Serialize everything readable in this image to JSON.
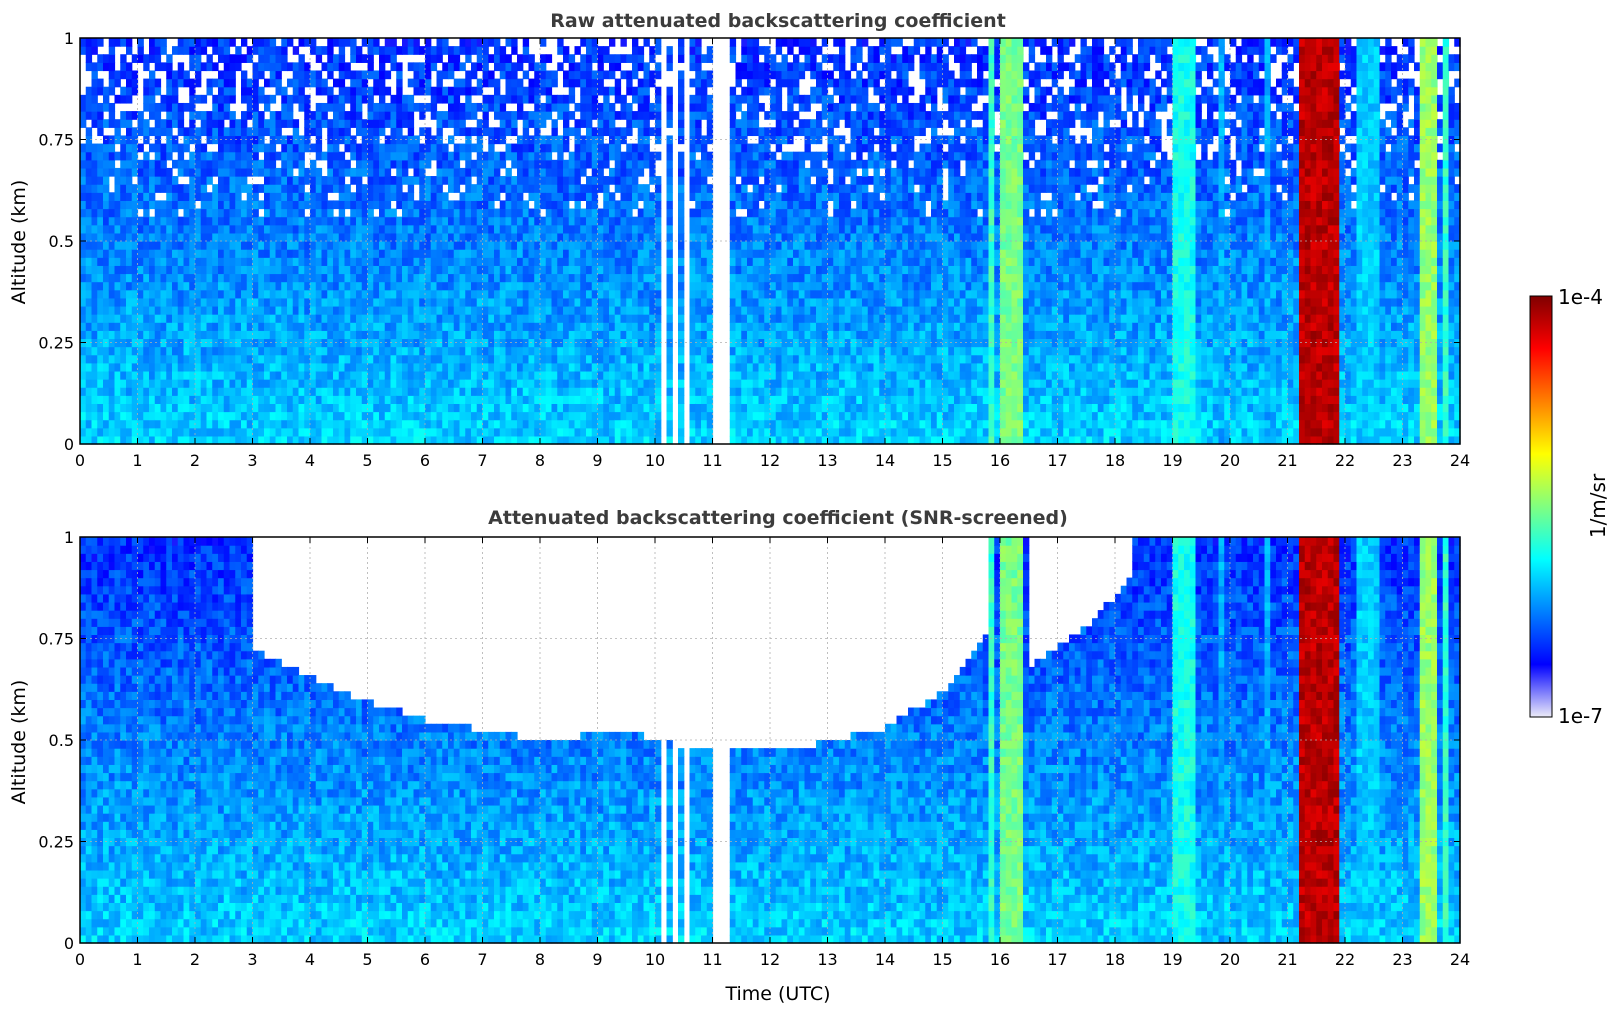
{
  "chart_data": [
    {
      "type": "heatmap",
      "title": "Raw attenuated backscattering coefficient",
      "xlabel": "",
      "ylabel": "Altitude (km)",
      "xlim": [
        0,
        24
      ],
      "ylim": [
        0,
        1
      ],
      "x_ticks": [
        "0",
        "1",
        "2",
        "3",
        "4",
        "5",
        "6",
        "7",
        "8",
        "9",
        "10",
        "11",
        "12",
        "13",
        "14",
        "15",
        "16",
        "17",
        "18",
        "19",
        "20",
        "21",
        "22",
        "23",
        "24"
      ],
      "y_ticks": [
        "0",
        "0.25",
        "0.5",
        "0.75",
        "1"
      ],
      "y_tick_values": [
        0,
        0.25,
        0.5,
        0.75,
        1
      ],
      "grid": true,
      "screened": false,
      "no_data_time_ranges_utc": [
        [
          10.1,
          10.18
        ],
        [
          10.3,
          10.42
        ],
        [
          10.55,
          10.62
        ],
        [
          11.05,
          11.35
        ],
        [
          11.5,
          11.54
        ]
      ],
      "enhanced_columns_utc": [
        {
          "start": 15.85,
          "end": 15.95,
          "peak_log10": -5.6
        },
        {
          "start": 16.0,
          "end": 16.4,
          "peak_log10": -5.4
        },
        {
          "start": 19.0,
          "end": 19.4,
          "peak_log10": -5.7
        },
        {
          "start": 19.85,
          "end": 19.95,
          "peak_log10": -6.0
        },
        {
          "start": 20.6,
          "end": 20.7,
          "peak_log10": -6.0
        },
        {
          "start": 21.2,
          "end": 21.9,
          "peak_log10": -4.05
        },
        {
          "start": 22.2,
          "end": 22.6,
          "peak_log10": -5.9
        },
        {
          "start": 23.3,
          "end": 23.6,
          "peak_log10": -5.3
        },
        {
          "start": 23.7,
          "end": 23.8,
          "peak_log10": -5.6
        }
      ],
      "background_log10": {
        "near_surface": -6.0,
        "aloft": -6.5
      }
    },
    {
      "type": "heatmap",
      "title": "Attenuated backscattering coefficient (SNR-screened)",
      "xlabel": "Time (UTC)",
      "ylabel": "Altitude (km)",
      "xlim": [
        0,
        24
      ],
      "ylim": [
        0,
        1
      ],
      "x_ticks": [
        "0",
        "1",
        "2",
        "3",
        "4",
        "5",
        "6",
        "7",
        "8",
        "9",
        "10",
        "11",
        "12",
        "13",
        "14",
        "15",
        "16",
        "17",
        "18",
        "19",
        "20",
        "21",
        "22",
        "23",
        "24"
      ],
      "y_ticks": [
        "0",
        "0.25",
        "0.5",
        "0.75",
        "1"
      ],
      "y_tick_values": [
        0,
        0.25,
        0.5,
        0.75,
        1
      ],
      "grid": true,
      "screened": true,
      "screening_top_km": [
        {
          "t": 0,
          "h": 1.0
        },
        {
          "t": 3.0,
          "h": 1.0
        },
        {
          "t": 3.05,
          "h": 0.72
        },
        {
          "t": 4.5,
          "h": 0.62
        },
        {
          "t": 6.0,
          "h": 0.55
        },
        {
          "t": 8.0,
          "h": 0.5
        },
        {
          "t": 9.5,
          "h": 0.52
        },
        {
          "t": 11.0,
          "h": 0.47
        },
        {
          "t": 12.5,
          "h": 0.48
        },
        {
          "t": 14.0,
          "h": 0.53
        },
        {
          "t": 15.0,
          "h": 0.62
        },
        {
          "t": 15.75,
          "h": 0.75
        },
        {
          "t": 15.8,
          "h": 1.0
        },
        {
          "t": 16.5,
          "h": 1.0
        },
        {
          "t": 16.55,
          "h": 0.68
        },
        {
          "t": 17.5,
          "h": 0.78
        },
        {
          "t": 18.3,
          "h": 0.9
        },
        {
          "t": 18.35,
          "h": 1.0
        },
        {
          "t": 24,
          "h": 1.0
        }
      ],
      "no_data_time_ranges_utc": [
        [
          10.1,
          10.18
        ],
        [
          10.3,
          10.42
        ],
        [
          10.55,
          10.62
        ],
        [
          11.05,
          11.35
        ],
        [
          11.5,
          11.54
        ]
      ],
      "enhanced_columns_utc": [
        {
          "start": 15.85,
          "end": 15.95,
          "peak_log10": -5.6
        },
        {
          "start": 16.0,
          "end": 16.4,
          "peak_log10": -5.4
        },
        {
          "start": 19.0,
          "end": 19.4,
          "peak_log10": -5.7
        },
        {
          "start": 19.85,
          "end": 19.95,
          "peak_log10": -6.0
        },
        {
          "start": 20.6,
          "end": 20.7,
          "peak_log10": -6.0
        },
        {
          "start": 21.2,
          "end": 21.9,
          "peak_log10": -4.05
        },
        {
          "start": 22.2,
          "end": 22.6,
          "peak_log10": -5.9
        },
        {
          "start": 23.3,
          "end": 23.6,
          "peak_log10": -5.3
        },
        {
          "start": 23.7,
          "end": 23.8,
          "peak_log10": -5.6
        }
      ],
      "background_log10": {
        "near_surface": -6.0,
        "aloft": -6.5
      }
    }
  ],
  "colorbar": {
    "label": "1/m/sr",
    "max_label": "1e-4",
    "min_label": "1e-7",
    "range_log10": [
      -7,
      -4
    ],
    "colormap": "jet",
    "colormap_stops": [
      "#ecebf8",
      "#0000ff",
      "#0080ff",
      "#00ffff",
      "#80ff80",
      "#ffff00",
      "#ff8000",
      "#ff0000",
      "#800000"
    ]
  }
}
